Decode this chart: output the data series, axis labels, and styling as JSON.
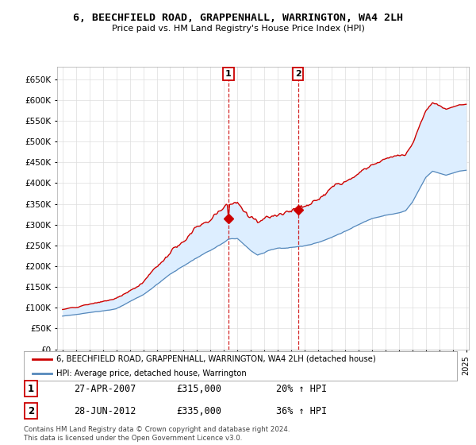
{
  "title": "6, BEECHFIELD ROAD, GRAPPENHALL, WARRINGTON, WA4 2LH",
  "subtitle": "Price paid vs. HM Land Registry's House Price Index (HPI)",
  "legend_line1": "6, BEECHFIELD ROAD, GRAPPENHALL, WARRINGTON, WA4 2LH (detached house)",
  "legend_line2": "HPI: Average price, detached house, Warrington",
  "sale1_date": "27-APR-2007",
  "sale1_price": 315000,
  "sale1_pct": "20%",
  "sale2_date": "28-JUN-2012",
  "sale2_price": 335000,
  "sale2_pct": "36%",
  "footnote": "Contains HM Land Registry data © Crown copyright and database right 2024.\nThis data is licensed under the Open Government Licence v3.0.",
  "ylim": [
    0,
    680000
  ],
  "yticks": [
    0,
    50000,
    100000,
    150000,
    200000,
    250000,
    300000,
    350000,
    400000,
    450000,
    500000,
    550000,
    600000,
    650000
  ],
  "red_color": "#cc0000",
  "blue_color": "#5588bb",
  "shade_color": "#ddeeff",
  "background_color": "#ffffff",
  "grid_color": "#dddddd",
  "sale1_t": 2007.33,
  "sale2_t": 2012.5
}
